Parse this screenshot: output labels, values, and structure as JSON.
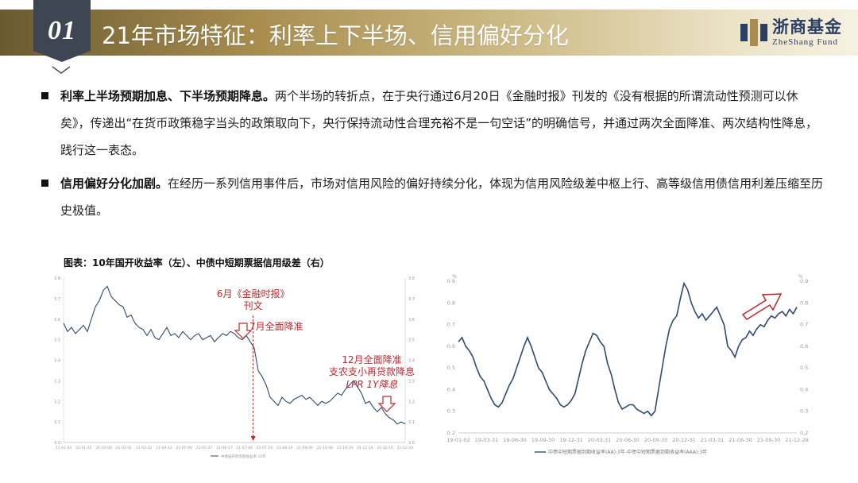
{
  "header": {
    "number": "01",
    "title": "21年市场特征：利率上下半场、信用偏好分化",
    "logo_name": "浙商基金",
    "logo_en": "ZheShang Fund"
  },
  "bullets": [
    {
      "bold": "利率上半场预期加息、下半场预期降息。",
      "text": "两个半场的转折点，在于央行通过6月20日《金融时报》刊发的《没有根据的所谓流动性预测可以休矣》，传递出“在货币政策稳字当头的政策取向下，央行保持流动性合理充裕不是一句空话”的明确信号，并通过两次全面降准、两次结构性降息，践行这一表态。"
    },
    {
      "bold": "信用偏好分化加剧。",
      "text": "在经历一系列信用事件后，市场对信用风险的偏好持续分化，体现为信用风险级差中枢上行、高等级信用债信用利差压缩至历史极值。"
    }
  ],
  "chart_caption": "图表：10年国开收益率（左）、中债中短期票据信用级差（右）",
  "colors": {
    "series": "#2f4a6d",
    "annotation": "#c0282d",
    "accent_gold": "#a88d4f",
    "tab": "#3e4654"
  },
  "chart_data": [
    {
      "type": "line",
      "title": "",
      "annotations": [
        {
          "text": "6月《金融时报》",
          "x": "21-06-20"
        },
        {
          "text": "刊文",
          "x": "21-06-20"
        },
        {
          "text": "7月全面降准",
          "x": "21-07-09"
        },
        {
          "text": "12月全面降准",
          "x": "21-12-06"
        },
        {
          "text": "支农支小再贷款降息",
          "x": "21-12-06"
        },
        {
          "text": "LPR 1Y降息",
          "x": "21-12-20"
        }
      ],
      "y_left_ticks": [
        "3.8",
        "3.7",
        "3.6",
        "3.5",
        "3.4",
        "3.3",
        "3.2",
        "3.1",
        "3.0"
      ],
      "y_right_ticks": [
        "3.8",
        "3.7",
        "3.6",
        "3.5",
        "3.4",
        "3.3",
        "3.2",
        "3.1",
        "3.0"
      ],
      "x_ticks": [
        "21-01-04",
        "21-01-25",
        "21-02-08",
        "21-03-01",
        "21-03-22",
        "21-04-13",
        "21-05-06",
        "21-05-27",
        "21-06-17",
        "21-07-08",
        "21-07-29",
        "21-08-19",
        "21-09-09",
        "21-10-08",
        "21-10-29",
        "21-11-19",
        "21-12-10",
        "21-12-24"
      ],
      "ylim": [
        3.0,
        3.8
      ],
      "series": [
        {
          "name": "中债国开债到期收益率:10年",
          "values": [
            3.58,
            3.54,
            3.56,
            3.53,
            3.55,
            3.57,
            3.54,
            3.6,
            3.66,
            3.69,
            3.74,
            3.76,
            3.71,
            3.69,
            3.67,
            3.66,
            3.61,
            3.62,
            3.58,
            3.56,
            3.55,
            3.52,
            3.55,
            3.51,
            3.5,
            3.53,
            3.56,
            3.52,
            3.53,
            3.51,
            3.54,
            3.52,
            3.5,
            3.52,
            3.53,
            3.5,
            3.51,
            3.52,
            3.49,
            3.51,
            3.53,
            3.52,
            3.54,
            3.53,
            3.51,
            3.5,
            3.52,
            3.49,
            3.46,
            3.35,
            3.32,
            3.28,
            3.22,
            3.2,
            3.18,
            3.22,
            3.2,
            3.19,
            3.21,
            3.22,
            3.23,
            3.21,
            3.22,
            3.2,
            3.18,
            3.2,
            3.19,
            3.2,
            3.22,
            3.24,
            3.23,
            3.26,
            3.28,
            3.3,
            3.27,
            3.24,
            3.19,
            3.2,
            3.17,
            3.15,
            3.17,
            3.14,
            3.12,
            3.11,
            3.09,
            3.1,
            3.09
          ]
        }
      ]
    },
    {
      "type": "line",
      "title": "",
      "y_ticks": [
        "0.9",
        "0.8",
        "0.7",
        "0.6",
        "0.5",
        "0.4",
        "0.3",
        "0.2"
      ],
      "y_unit": "%",
      "x_ticks": [
        "19-01-02",
        "19-03-31",
        "19-06-30",
        "19-09-30",
        "19-12-31",
        "20-03-31",
        "20-06-30",
        "20-09-30",
        "20-12-31",
        "21-03-31",
        "21-06-30",
        "21-09-30",
        "21-12-28"
      ],
      "ylim": [
        0.2,
        0.9
      ],
      "series": [
        {
          "name": "中债中短期票据到期收益率(AA):3年-中债中短期票据到期收益率(AAA):3年",
          "values": [
            0.62,
            0.64,
            0.6,
            0.58,
            0.55,
            0.5,
            0.46,
            0.44,
            0.4,
            0.36,
            0.33,
            0.32,
            0.34,
            0.38,
            0.42,
            0.45,
            0.5,
            0.55,
            0.6,
            0.64,
            0.6,
            0.55,
            0.5,
            0.48,
            0.44,
            0.4,
            0.38,
            0.36,
            0.33,
            0.32,
            0.33,
            0.35,
            0.38,
            0.45,
            0.52,
            0.58,
            0.62,
            0.66,
            0.65,
            0.62,
            0.6,
            0.52,
            0.47,
            0.4,
            0.34,
            0.31,
            0.32,
            0.33,
            0.33,
            0.31,
            0.3,
            0.29,
            0.3,
            0.28,
            0.3,
            0.4,
            0.5,
            0.6,
            0.68,
            0.72,
            0.74,
            0.82,
            0.89,
            0.86,
            0.8,
            0.76,
            0.73,
            0.75,
            0.72,
            0.74,
            0.76,
            0.78,
            0.74,
            0.7,
            0.6,
            0.58,
            0.55,
            0.6,
            0.63,
            0.64,
            0.67,
            0.65,
            0.68,
            0.7,
            0.69,
            0.72,
            0.74,
            0.73,
            0.75,
            0.76,
            0.74,
            0.77,
            0.75,
            0.78
          ]
        }
      ],
      "legend": "bottom"
    }
  ]
}
